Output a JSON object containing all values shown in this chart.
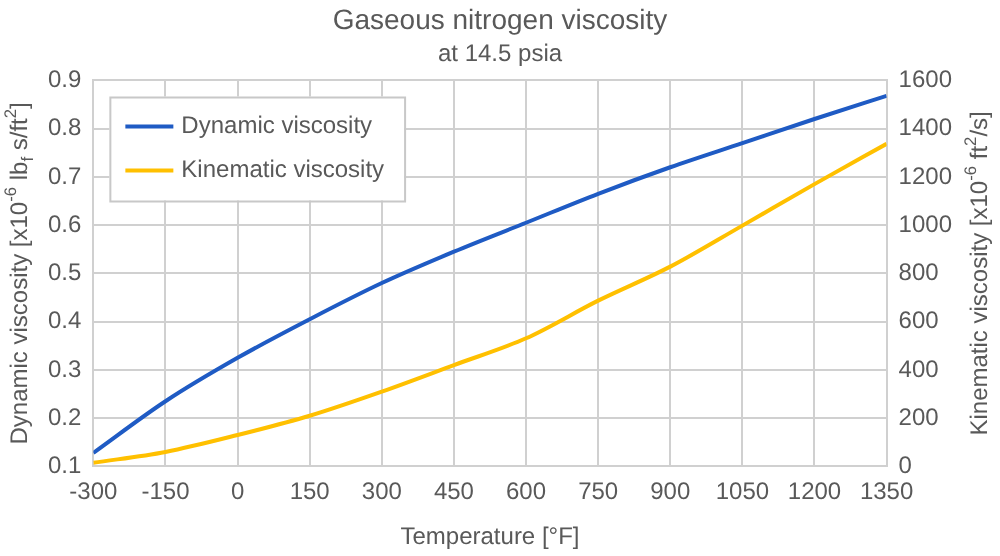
{
  "chart_data": {
    "type": "line",
    "title": "Gaseous nitrogen viscosity",
    "subtitle": "at 14.5 psia",
    "xlabel": "Temperature [°F]",
    "ylabel": "Dynamic viscosity [x10$^{-6}$ lb$_{f}$ s/ft$^{2}$]",
    "y2label": "Kinematic viscosity [x10$^{-6}$ ft$^{2}$/s]",
    "x": [
      -300,
      -150,
      0,
      150,
      300,
      450,
      600,
      750,
      900,
      1050,
      1200,
      1350
    ],
    "series": [
      {
        "name": "Dynamic viscosity",
        "color": "#1f5bc4",
        "values": [
          0.128,
          0.235,
          0.325,
          0.405,
          0.48,
          0.545,
          0.605,
          0.665,
          0.72,
          0.77,
          0.82,
          0.868
        ]
      },
      {
        "name": "Kinematic viscosity",
        "color": "#ffc000",
        "axis": "y2",
        "values": [
          15,
          60,
          130,
          210,
          310,
          420,
          531,
          687,
          828,
          998,
          1170,
          1337
        ]
      }
    ],
    "xlim": [
      -300,
      1350
    ],
    "xticks": [
      -300,
      -150,
      0,
      150,
      300,
      450,
      600,
      750,
      900,
      1050,
      1200,
      1350
    ],
    "ylim": [
      0.1,
      0.9
    ],
    "yticks": [
      0.1,
      0.2,
      0.3,
      0.4,
      0.5,
      0.6,
      0.7,
      0.8,
      0.9
    ],
    "y2lim": [
      0,
      1600
    ],
    "y2ticks": [
      0,
      200,
      400,
      600,
      800,
      1000,
      1200,
      1400,
      1600
    ],
    "grid": true,
    "legend": "top left",
    "marker": "none",
    "line_style": "solid"
  }
}
